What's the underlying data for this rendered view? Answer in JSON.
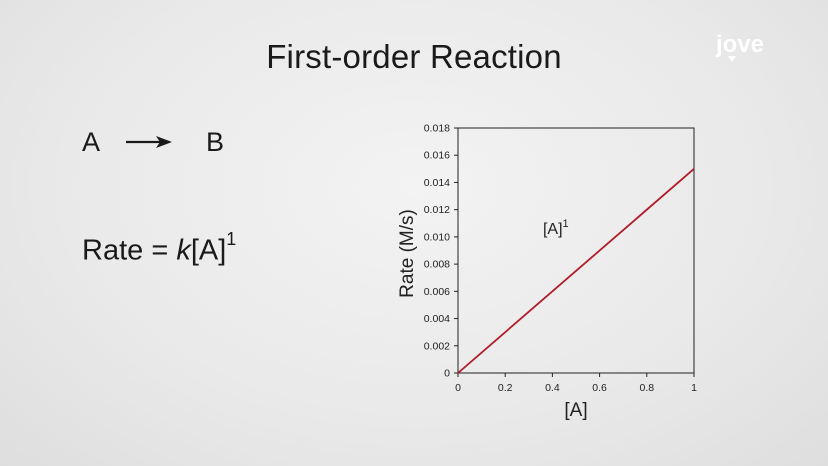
{
  "slide": {
    "title": "First-order Reaction",
    "brand": "jove",
    "reaction": {
      "reactant": "A",
      "product": "B"
    },
    "rate_law": {
      "prefix": "Rate = ",
      "constant": "k",
      "concentration": "[A]",
      "order": "1"
    }
  },
  "colors": {
    "line": "#b01c2a",
    "axis": "#222222",
    "logo": "#ffffff"
  },
  "icons": {
    "reaction_arrow": "right-arrow-icon",
    "logo": "jove-logo-icon"
  },
  "chart_data": {
    "type": "line",
    "xlabel": "[A]",
    "ylabel": "Rate (M/s)",
    "xlim": [
      0,
      1
    ],
    "ylim": [
      0,
      0.018
    ],
    "x_ticks": [
      "0",
      "0.2",
      "0.4",
      "0.6",
      "0.8",
      "1"
    ],
    "y_ticks": [
      "0",
      "0.002",
      "0.004",
      "0.006",
      "0.008",
      "0.010",
      "0.012",
      "0.014",
      "0.016",
      "0.018"
    ],
    "grid": false,
    "series": [
      {
        "x": [
          0,
          1
        ],
        "y": [
          0,
          0.015
        ]
      }
    ],
    "annotation": {
      "text": "[A]",
      "superscript": "1",
      "x": 0.36,
      "y": 0.0102
    }
  }
}
